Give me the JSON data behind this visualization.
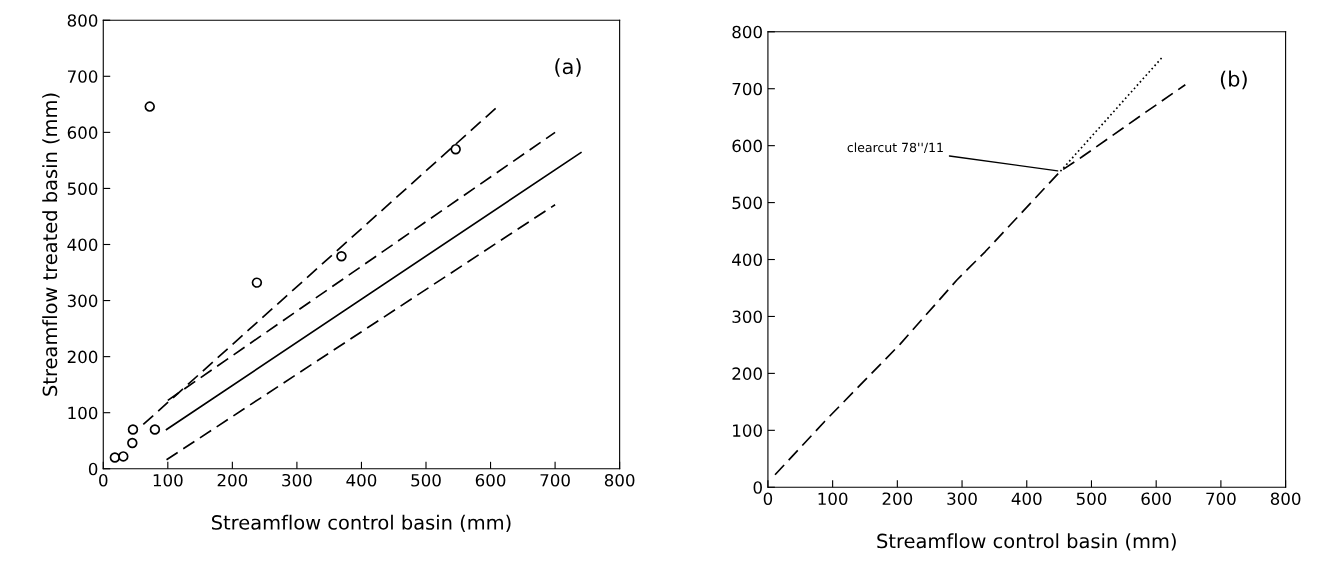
{
  "chart_data": [
    {
      "type": "scatter",
      "xlabel": "Streamflow control basin (mm)",
      "ylabel": "Streamflow treated basin (mm)",
      "xlim": [
        0,
        800
      ],
      "ylim": [
        0,
        800
      ],
      "xticks": [
        0,
        100,
        200,
        300,
        400,
        500,
        600,
        700,
        800
      ],
      "yticks": [
        0,
        100,
        200,
        300,
        400,
        500,
        600,
        700,
        800
      ],
      "grid": false,
      "legend": false,
      "marker": "circle",
      "annotations": [
        "(a)"
      ],
      "series": [
        {
          "color": "#000000",
          "x": [
            18,
            31,
            45,
            46,
            80,
            72,
            238,
            369,
            546
          ],
          "values": [
            20,
            22,
            46,
            70,
            70,
            646,
            332,
            379,
            570
          ]
        },
        {
          "type": "line",
          "color": "#000000",
          "marker": "none",
          "line_style": "dashed",
          "x": [
            62,
            611
          ],
          "values": [
            79,
            646
          ]
        },
        {
          "type": "line",
          "color": "#000000",
          "marker": "none",
          "line_style": "dashed",
          "x": [
            100,
            700
          ],
          "values": [
            122,
            600
          ]
        },
        {
          "type": "line",
          "color": "#000000",
          "marker": "none",
          "line_style": "solid",
          "x": [
            98,
            740
          ],
          "values": [
            70,
            564
          ]
        },
        {
          "type": "line",
          "color": "#000000",
          "marker": "none",
          "line_style": "dashed",
          "x": [
            98,
            700
          ],
          "values": [
            16,
            471
          ]
        }
      ]
    },
    {
      "type": "line",
      "xlabel": "Streamflow control basin (mm)",
      "xlim": [
        0,
        800
      ],
      "ylim": [
        0,
        800
      ],
      "xticks": [
        0,
        100,
        200,
        300,
        400,
        500,
        600,
        700,
        800
      ],
      "yticks": [
        0,
        100,
        200,
        300,
        400,
        500,
        600,
        700,
        800
      ],
      "grid": false,
      "legend": false,
      "marker": "none",
      "annotations": [
        "(b)",
        {
          "text": "clearcut 78''/11",
          "x": 452,
          "y": 555
        }
      ],
      "series": [
        {
          "color": "#000000",
          "line_style": "dashed",
          "x": [
            11,
            88,
            204,
            292,
            336,
            452,
            485,
            579,
            645
          ],
          "values": [
            22,
            116,
            251,
            364,
            414,
            555,
            580,
            655,
            707
          ]
        },
        {
          "type": "line",
          "color": "#000000",
          "line_style": "dotted",
          "x": [
            452,
            610
          ],
          "values": [
            555,
            756
          ]
        }
      ]
    }
  ]
}
